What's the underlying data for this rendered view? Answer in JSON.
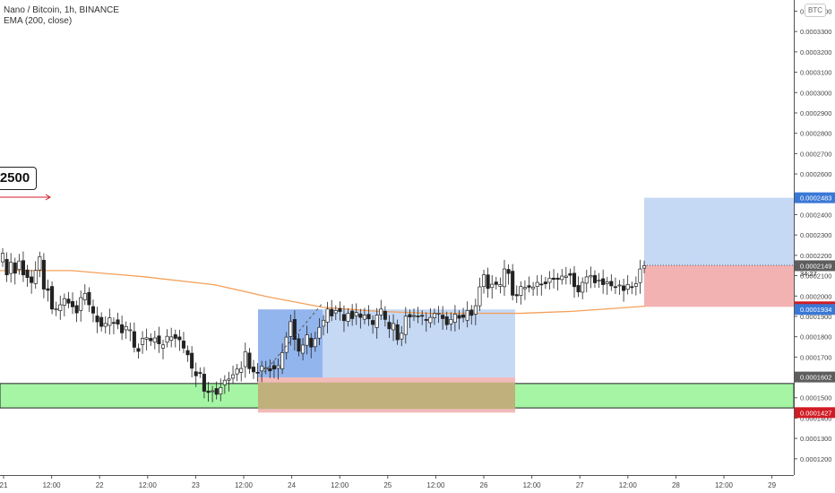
{
  "header": {
    "title": "Nano / Bitcoin, 1h, BINANCE",
    "indicator": "EMA (200, close)",
    "currency_button": "BTC"
  },
  "annotation": {
    "text": "2500"
  },
  "colors": {
    "up": "#26a69a",
    "down": "#222222",
    "ema": "#f5a05a",
    "zone_green": "#a5f5a5",
    "target_blue": "#c5d9f5",
    "target_blue_dark": "#93b5ee",
    "stop_red": "#f2b2b2",
    "overlap": "#bfb07c",
    "label_blue": "#3a78d6",
    "label_red": "#d01c24",
    "label_dark": "#5d5d5d"
  },
  "chart_data": {
    "type": "candlestick",
    "title": "Nano / Bitcoin, 1h, BINANCE",
    "overlay": "EMA (200, close)",
    "y_axis": {
      "range": [
        0.000112,
        0.0003455
      ],
      "ticks": [
        "0.0003400",
        "0.0003300",
        "0.0003200",
        "0.0003100",
        "0.0003000",
        "0.0002900",
        "0.0002800",
        "0.0002700",
        "0.0002600",
        "0.0002500",
        "0.0002400",
        "0.0002300",
        "0.0002200",
        "0.0002100",
        "0.0002000",
        "0.0001900",
        "0.0001800",
        "0.0001700",
        "0.0001600",
        "0.0001500",
        "0.0001400",
        "0.0001300",
        "0.0001200"
      ]
    },
    "x_axis": {
      "labels": [
        "21",
        "12:00",
        "22",
        "12:00",
        "23",
        "12:00",
        "24",
        "12:00",
        "25",
        "12:00",
        "26",
        "12:00",
        "27",
        "12:00",
        "28",
        "12:00",
        "29"
      ]
    },
    "price_labels": [
      {
        "value": "0.0002483",
        "style": "blue"
      },
      {
        "value": "0.0002151",
        "style": "plain",
        "sub": "34:27"
      },
      {
        "value": "0.0002149",
        "style": "dark"
      },
      {
        "value": "0.0001947",
        "style": "red"
      },
      {
        "value": "0.0001934",
        "style": "blue"
      },
      {
        "value": "0.0001602",
        "style": "dark"
      },
      {
        "value": "0.0001427",
        "style": "red"
      }
    ],
    "zones": [
      {
        "kind": "support",
        "low": 0.000145,
        "high": 0.000157
      },
      {
        "kind": "long_target",
        "entry": 0.0001934,
        "target": 0.00016,
        "stop": 0.0001427
      },
      {
        "kind": "long_position",
        "entry": 0.0002151,
        "target": 0.0002483,
        "stop": 0.0001947
      }
    ],
    "ema_points": [
      [
        0,
        0.0002125
      ],
      [
        80,
        0.0002125
      ],
      [
        160,
        0.0002095
      ],
      [
        240,
        0.0002055
      ],
      [
        300,
        0.0001995
      ],
      [
        360,
        0.0001945
      ],
      [
        420,
        0.0001925
      ],
      [
        480,
        0.0001915
      ],
      [
        540,
        0.0001915
      ],
      [
        580,
        0.0001915
      ],
      [
        640,
        0.0001925
      ],
      [
        720,
        0.000195
      ]
    ],
    "candles": [
      [
        0.0002168,
        0.000221
      ],
      [
        0.000218,
        0.0002104
      ],
      [
        0.0002111,
        0.0002166
      ],
      [
        0.0002163,
        0.0002112
      ],
      [
        0.000213,
        0.0002172
      ],
      [
        0.0002174,
        0.0002104
      ],
      [
        0.0002128,
        0.0002091
      ],
      [
        0.0002094,
        0.0002066
      ],
      [
        0.0002061,
        0.0002126
      ],
      [
        0.0002128,
        0.0002193
      ],
      [
        0.0002176,
        0.0002034
      ],
      [
        0.0002036,
        0.0002028
      ],
      [
        0.0002047,
        0.0001936
      ],
      [
        0.0001936,
        0.0001937
      ],
      [
        0.0001928,
        0.0001957
      ],
      [
        0.0001955,
        0.0001987
      ],
      [
        0.0001985,
        0.0001965
      ],
      [
        0.0001973,
        0.0001947
      ],
      [
        0.0001953,
        0.0001917
      ],
      [
        0.0001929,
        0.0001992
      ],
      [
        0.0001981,
        0.0002013
      ],
      [
        0.0002018,
        0.0001957
      ],
      [
        0.0001948,
        0.0001916
      ],
      [
        0.0001902,
        0.0001873
      ],
      [
        0.0001895,
        0.0001851
      ],
      [
        0.0001851,
        0.0001865
      ],
      [
        0.0001856,
        0.0001893
      ],
      [
        0.000187,
        0.0001867
      ],
      [
        0.0001883,
        0.0001862
      ],
      [
        0.0001859,
        0.0001819
      ],
      [
        0.0001834,
        0.000185
      ],
      [
        0.0001833,
        0.0001834
      ],
      [
        0.0001825,
        0.0001748
      ],
      [
        0.0001742,
        0.0001728
      ],
      [
        0.0001761,
        0.0001792
      ],
      [
        0.0001788,
        0.0001795
      ],
      [
        0.0001792,
        0.000178
      ],
      [
        0.0001773,
        0.0001794
      ],
      [
        0.0001804,
        0.0001765
      ],
      [
        0.0001744,
        0.000176
      ],
      [
        0.0001773,
        0.0001802
      ],
      [
        0.0001783,
        0.0001799
      ],
      [
        0.000181,
        0.0001792
      ],
      [
        0.0001799,
        0.0001785
      ],
      [
        0.0001779,
        0.0001744
      ],
      [
        0.0001732,
        0.0001711
      ],
      [
        0.0001719,
        0.0001645
      ],
      [
        0.0001628,
        0.0001608
      ],
      [
        0.0001624,
        0.0001622
      ],
      [
        0.0001616,
        0.0001532
      ],
      [
        0.0001533,
        0.0001526
      ],
      [
        0.0001533,
        0.0001534
      ],
      [
        0.0001545,
        0.0001517
      ],
      [
        0.0001518,
        0.000155
      ],
      [
        0.0001564,
        0.0001586
      ],
      [
        0.0001586,
        0.0001592
      ],
      [
        0.0001596,
        0.0001613
      ],
      [
        0.0001617,
        0.0001641
      ],
      [
        0.0001625,
        0.0001644
      ],
      [
        0.0001653,
        0.0001726
      ],
      [
        0.000172,
        0.0001643
      ],
      [
        0.0001651,
        0.0001627
      ],
      [
        0.0001625,
        0.0001622
      ],
      [
        0.0001632,
        0.0001656
      ],
      [
        0.0001641,
        0.0001646
      ],
      [
        0.0001643,
        0.0001632
      ],
      [
        0.0001658,
        0.0001641
      ],
      [
        0.0001645,
        0.0001657
      ],
      [
        0.0001642,
        0.0001722
      ],
      [
        0.0001723,
        0.0001798
      ],
      [
        0.0001801,
        0.0001874
      ],
      [
        0.0001885,
        0.0001787
      ],
      [
        0.000179,
        0.0001729
      ],
      [
        0.0001719,
        0.0001759
      ],
      [
        0.0001758,
        0.0001809
      ],
      [
        0.0001793,
        0.0001749
      ],
      [
        0.0001751,
        0.000179
      ],
      [
        0.0001793,
        0.0001846
      ],
      [
        0.0001852,
        0.0001881
      ],
      [
        0.0001872,
        0.0001936
      ],
      [
        0.0001935,
        0.0001902
      ],
      [
        0.0001917,
        0.0001929
      ],
      [
        0.0001939,
        0.0001924
      ],
      [
        0.0001909,
        0.0001879
      ],
      [
        0.0001875,
        0.0001915
      ],
      [
        0.0001926,
        0.0001889
      ],
      [
        0.0001903,
        0.0001919
      ],
      [
        0.0001912,
        0.0001895
      ],
      [
        0.0001886,
        0.0001906
      ],
      [
        0.000191,
        0.0001888
      ],
      [
        0.000188,
        0.000186
      ],
      [
        0.0001845,
        0.0001906
      ],
      [
        0.0001907,
        0.0001936
      ],
      [
        0.0001925,
        0.0001885
      ],
      [
        0.0001871,
        0.0001839
      ],
      [
        0.0001834,
        0.0001865
      ],
      [
        0.0001859,
        0.0001785
      ],
      [
        0.0001789,
        0.0001817
      ],
      [
        0.0001811,
        0.0001901
      ],
      [
        0.0001909,
        0.0001897
      ],
      [
        0.0001902,
        0.0001904
      ],
      [
        0.0001902,
        0.0001901
      ],
      [
        0.0001905,
        0.0001902
      ],
      [
        0.0001885,
        0.000188
      ],
      [
        0.0001869,
        0.0001895
      ],
      [
        0.0001893,
        0.0001914
      ],
      [
        0.0001913,
        0.0001916
      ],
      [
        0.0001906,
        0.0001889
      ],
      [
        0.0001898,
        0.0001859
      ],
      [
        0.0001863,
        0.0001885
      ],
      [
        0.0001871,
        0.0001911
      ],
      [
        0.0001905,
        0.0001891
      ],
      [
        0.0001907,
        0.0001895
      ],
      [
        0.0001881,
        0.0001929
      ],
      [
        0.0001931,
        0.0001905
      ],
      [
        0.0001911,
        0.0001952
      ],
      [
        0.0001952,
        0.0002045
      ],
      [
        0.0002047,
        0.0002104
      ],
      [
        0.0002104,
        0.0002037
      ],
      [
        0.0002042,
        0.0002058
      ],
      [
        0.0002069,
        0.0002057
      ],
      [
        0.0002048,
        0.0002056
      ],
      [
        0.0002046,
        0.0002133
      ],
      [
        0.0002131,
        0.0002111
      ],
      [
        0.0002122,
        0.0002004
      ],
      [
        0.0002007,
        0.0002001
      ],
      [
        0.0002003,
        0.0002047
      ],
      [
        0.0002036,
        0.0002042
      ],
      [
        0.0002051,
        0.0002043
      ],
      [
        0.0002036,
        0.0002044
      ],
      [
        0.0002047,
        0.0002067
      ],
      [
        0.0002059,
        0.0002057
      ],
      [
        0.0002069,
        0.000206
      ],
      [
        0.0002067,
        0.0002088
      ],
      [
        0.0002088,
        0.0002082
      ],
      [
        0.0002088,
        0.0002082
      ],
      [
        0.0002081,
        0.0002098
      ],
      [
        0.0002092,
        0.0002098
      ],
      [
        0.000211,
        0.0002102
      ],
      [
        0.0002112,
        0.0002046
      ],
      [
        0.0002052,
        0.000202
      ],
      [
        0.0002019,
        0.0002067
      ],
      [
        0.0002063,
        0.0002094
      ],
      [
        0.0002094,
        0.00021
      ],
      [
        0.0002101,
        0.0002065
      ],
      [
        0.0002075,
        0.0002078
      ],
      [
        0.0002085,
        0.0002056
      ],
      [
        0.0002061,
        0.0002069
      ],
      [
        0.0002072,
        0.000205
      ],
      [
        0.0002046,
        0.0002045
      ],
      [
        0.0002051,
        0.0002054
      ],
      [
        0.000205,
        0.0002027
      ],
      [
        0.0002033,
        0.0002057
      ],
      [
        0.0002046,
        0.0002044
      ],
      [
        0.0002048,
        0.0002061
      ],
      [
        0.0002066,
        0.0002133
      ],
      [
        0.0002137,
        0.0002149
      ]
    ]
  }
}
